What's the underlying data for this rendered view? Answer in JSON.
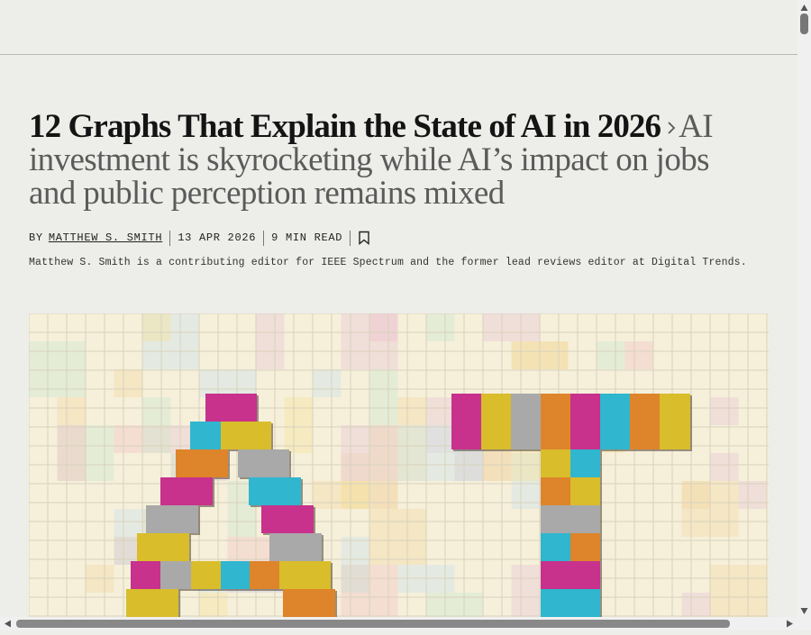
{
  "article": {
    "title": "12 Graphs That Explain the State of AI in 2026",
    "subtitle": "AI investment is skyrocketing while AI’s impact on jobs and public perception remains mixed",
    "byline_prefix": "BY",
    "author": "MATTHEW S. SMITH",
    "date": "13 APR 2026",
    "read_time": "9 MIN READ",
    "author_bio": "Matthew S. Smith is a contributing editor for IEEE Spectrum and the former lead reviews editor at Digital Trends."
  }
}
